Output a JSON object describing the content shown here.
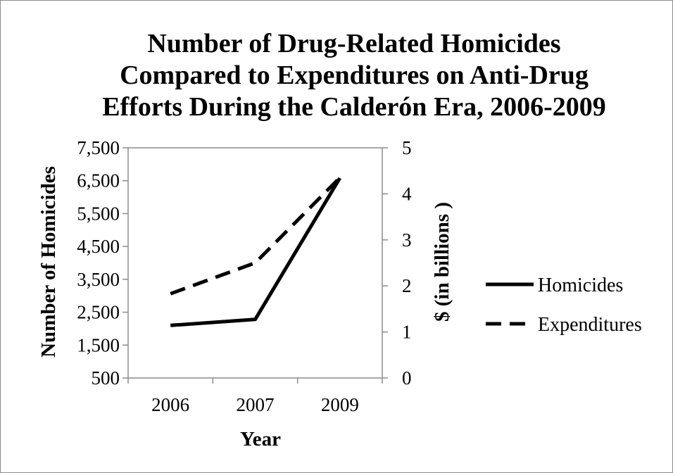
{
  "chart_data": {
    "type": "line",
    "title_lines": [
      "Number of Drug-Related Homicides",
      "Compared to Expenditures on Anti-Drug",
      "Efforts During the Calderón Era, 2006-2009"
    ],
    "xlabel": "Year",
    "ylabel_left": "Number of Homicides",
    "ylabel_right": "$ (in billions )",
    "categories": [
      "2006",
      "2007",
      "2009"
    ],
    "y_left_ticks": [
      "500",
      "1,500",
      "2,500",
      "3,500",
      "4,500",
      "5,500",
      "6,500",
      "7,500"
    ],
    "y_left_range": [
      500,
      7500
    ],
    "y_right_ticks": [
      "0",
      "1",
      "2",
      "3",
      "4",
      "5"
    ],
    "y_right_range": [
      0,
      5
    ],
    "grid": false,
    "legend_position": "right",
    "series": [
      {
        "name": "Homicides",
        "axis": "left",
        "style": "solid",
        "color": "#000000",
        "values": [
          2100,
          2280,
          6580
        ]
      },
      {
        "name": "Expenditures",
        "axis": "right",
        "style": "dashed",
        "color": "#000000",
        "values": [
          1.83,
          2.5,
          4.35
        ]
      }
    ]
  }
}
